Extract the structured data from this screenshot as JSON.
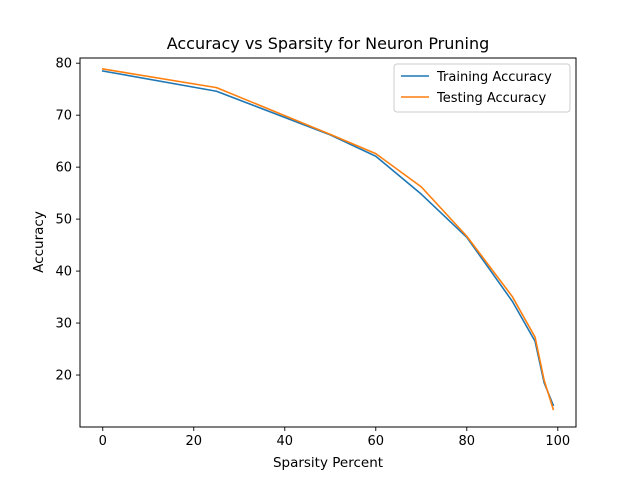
{
  "chart_data": {
    "type": "line",
    "title": "Accuracy vs Sparsity for Neuron Pruning",
    "xlabel": "Sparsity Percent",
    "ylabel": "Accuracy",
    "xlim": [
      -5,
      104
    ],
    "ylim": [
      10,
      81
    ],
    "xticks": [
      0,
      20,
      40,
      60,
      80,
      100
    ],
    "yticks": [
      20,
      30,
      40,
      50,
      60,
      70,
      80
    ],
    "grid": false,
    "legend_position": "top-right",
    "series": [
      {
        "name": "Training Accuracy",
        "color": "#1f77b4",
        "x": [
          0,
          25,
          50,
          60,
          70,
          80,
          90,
          95,
          97,
          99
        ],
        "y": [
          78.5,
          74.6,
          66.2,
          62.1,
          54.8,
          46.5,
          34.2,
          26.5,
          18.5,
          14.2
        ]
      },
      {
        "name": "Testing Accuracy",
        "color": "#ff7f0e",
        "x": [
          0,
          25,
          50,
          60,
          70,
          80,
          90,
          95,
          97,
          99
        ],
        "y": [
          78.9,
          75.3,
          66.3,
          62.6,
          56.2,
          46.7,
          35.1,
          27.3,
          19.0,
          13.4
        ]
      }
    ]
  }
}
